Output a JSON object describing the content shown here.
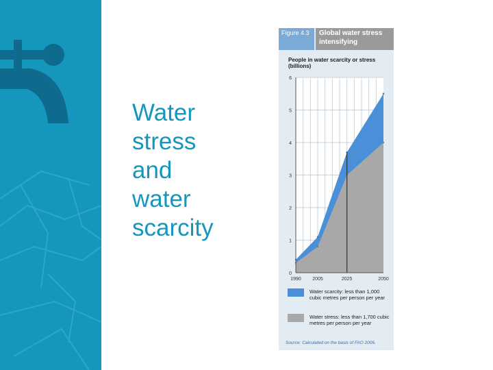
{
  "slide": {
    "title_lines": [
      "Water",
      "stress",
      "and",
      "water",
      "scarcity"
    ]
  },
  "figure": {
    "label": "Figure 4.3",
    "title": "Global water stress intensifying",
    "source_label": "Source:",
    "source_text": "Calculated on the basis of FAO 2006."
  },
  "icons": {
    "sidebar": "water-tap-icon"
  },
  "colors": {
    "sidebar_bg": "#1597bd",
    "title_text": "#1597bd",
    "scarcity_fill": "#4a90d9",
    "stress_fill": "#a8a8a8",
    "figure_bg": "#e4ecf3"
  },
  "chart_data": {
    "type": "area",
    "title": "People in water scarcity or stress (billions)",
    "xlabel": "",
    "ylabel": "",
    "x": [
      1990,
      2005,
      2025,
      2050
    ],
    "x_ticks": [
      "1990",
      "2005",
      "2025",
      "2050"
    ],
    "y_ticks": [
      "0",
      "1",
      "2",
      "3",
      "4",
      "5",
      "6"
    ],
    "ylim": [
      0,
      6
    ],
    "grid": true,
    "series": [
      {
        "name": "Water scarcity: less than 1,000 cubic metres per person per year",
        "values": [
          0.4,
          1.1,
          3.7,
          5.5
        ]
      },
      {
        "name": "Water stress: less than 1,700 cubic metres per person per year",
        "values": [
          0.3,
          0.8,
          3.0,
          4.0
        ]
      }
    ]
  }
}
